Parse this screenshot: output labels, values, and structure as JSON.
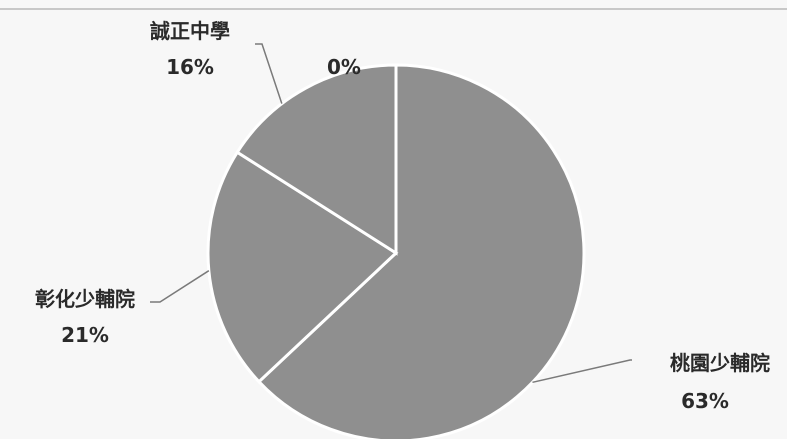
{
  "chart_data": {
    "type": "pie",
    "title": "",
    "categories": [
      "桃園少輔院",
      "彰化少輔院",
      "誠正中學",
      ""
    ],
    "values": [
      63,
      21,
      16,
      0
    ],
    "value_labels": [
      "63%",
      "21%",
      "16%",
      "0%"
    ],
    "colors": {
      "slice_fill": "#8f8f8f",
      "slice_border": "#ffffff",
      "leader_line": "#7a7a7a",
      "label_text": "#2a2a2a",
      "background": "#f7f7f7",
      "top_rule": "#c8c8c8"
    },
    "start_angle_deg": 0,
    "direction": "clockwise",
    "legend": "none",
    "labels_outside_with_leader_lines": true
  }
}
